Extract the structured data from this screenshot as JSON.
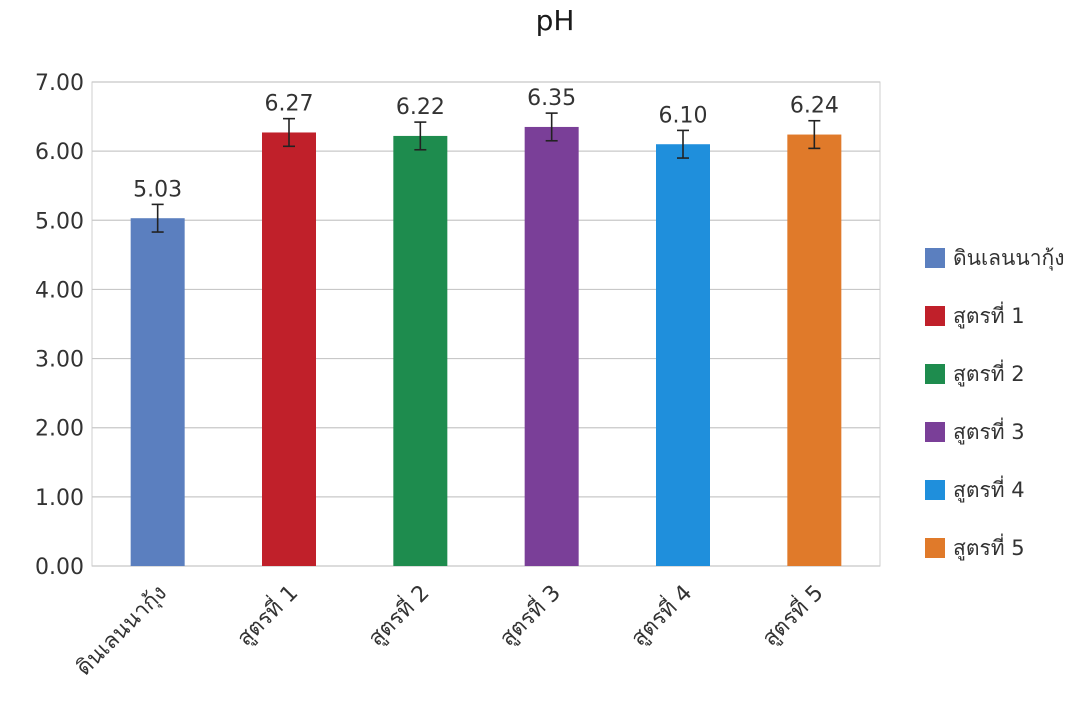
{
  "chart_data": {
    "type": "bar",
    "title": "pH",
    "xlabel": "",
    "ylabel": "",
    "categories": [
      "ดินเลนนากุ้ง",
      "สูตรที่ 1",
      "สูตรที่ 2",
      "สูตรที่ 3",
      "สูตรที่ 4",
      "สูตรที่ 5"
    ],
    "values": [
      5.03,
      6.27,
      6.22,
      6.35,
      6.1,
      6.24
    ],
    "value_labels": [
      "5.03",
      "6.27",
      "6.22",
      "6.35",
      "6.10",
      "6.24"
    ],
    "error": [
      0.2,
      0.2,
      0.2,
      0.2,
      0.2,
      0.2
    ],
    "colors": [
      "#5b7fbf",
      "#c0202a",
      "#1e8c4e",
      "#7a3f98",
      "#1f8fdc",
      "#e07a2a"
    ],
    "ylim": [
      0,
      7
    ],
    "yticks": [
      0,
      1,
      2,
      3,
      4,
      5,
      6,
      7
    ],
    "ytick_labels": [
      "0.00",
      "1.00",
      "2.00",
      "3.00",
      "4.00",
      "5.00",
      "6.00",
      "7.00"
    ],
    "grid": true,
    "legend_position": "right",
    "legend": [
      "ดินเลนนากุ้ง",
      "สูตรที่ 1",
      "สูตรที่ 2",
      "สูตรที่ 3",
      "สูตรที่ 4",
      "สูตรที่ 5"
    ]
  }
}
